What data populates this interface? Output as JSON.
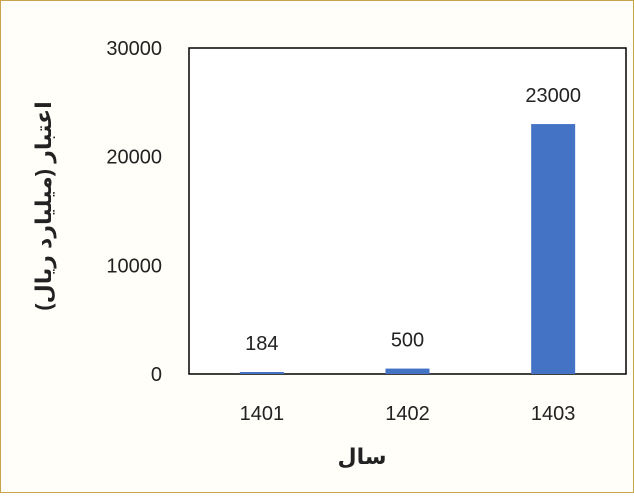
{
  "chart_data": {
    "type": "bar",
    "title": "",
    "xlabel": "سال",
    "ylabel": "اعتبار (میلیارد ریال)",
    "categories": [
      "1401",
      "1402",
      "1403"
    ],
    "values": [
      184,
      500,
      23000
    ],
    "data_labels": [
      "184",
      "500",
      "23000"
    ],
    "ylim": [
      0,
      30000
    ],
    "yticks": [
      0,
      10000,
      20000,
      30000
    ],
    "ytick_labels": [
      "0",
      "10000",
      "20000",
      "30000"
    ],
    "grid": false,
    "legend": "none",
    "colors": {
      "bar": "#4472C4",
      "frame_border": "#C7A44A",
      "background": "#FFFEF9"
    }
  }
}
